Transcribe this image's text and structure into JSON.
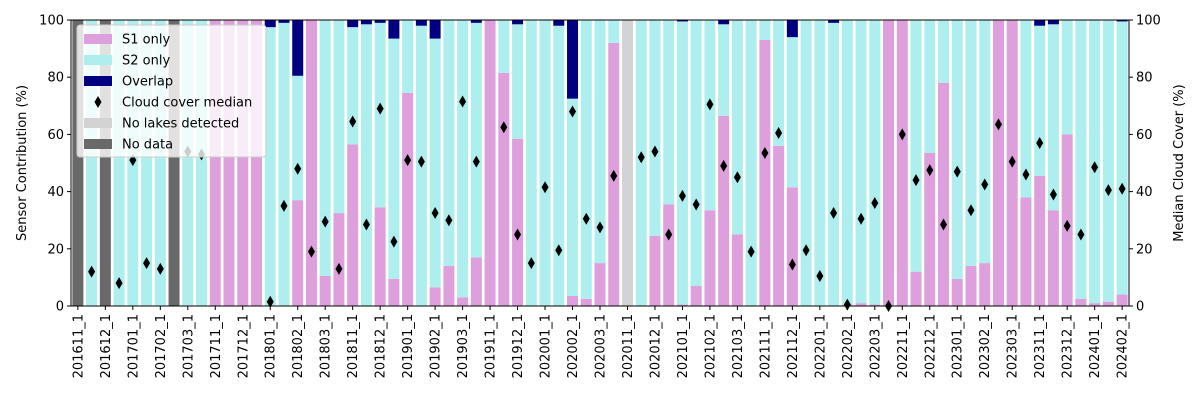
{
  "chart_data": {
    "type": "bar",
    "stacked": true,
    "ylabel_left": "Sensor Contribution (%)",
    "ylabel_right": "Median Cloud Cover (%)",
    "ylim": [
      0,
      100
    ],
    "y2lim": [
      0,
      100
    ],
    "yticks": [
      0,
      20,
      40,
      60,
      80,
      100
    ],
    "grid": false,
    "legend_position": "top-left",
    "colors": {
      "s1": "#dda0dd",
      "s2": "#afeeee",
      "overlap": "#000080",
      "no_lakes": "#d3d3d3",
      "no_data": "#696969",
      "median": "#000000"
    },
    "legend": [
      {
        "key": "s1",
        "label": "S1 only",
        "kind": "patch"
      },
      {
        "key": "s2",
        "label": "S2 only",
        "kind": "patch"
      },
      {
        "key": "overlap",
        "label": "Overlap",
        "kind": "patch"
      },
      {
        "key": "median",
        "label": "Cloud cover median",
        "kind": "marker"
      },
      {
        "key": "no_lakes",
        "label": "No lakes detected",
        "kind": "patch"
      },
      {
        "key": "no_data",
        "label": "No data",
        "kind": "patch"
      }
    ],
    "x_tick_labels": [
      {
        "index": 0,
        "label": "201611_1"
      },
      {
        "index": 2,
        "label": "201612_1"
      },
      {
        "index": 4,
        "label": "201701_1"
      },
      {
        "index": 6,
        "label": "201702_1"
      },
      {
        "index": 8,
        "label": "201703_1"
      },
      {
        "index": 10,
        "label": "201711_1"
      },
      {
        "index": 12,
        "label": "201712_1"
      },
      {
        "index": 14,
        "label": "201801_1"
      },
      {
        "index": 16,
        "label": "201802_1"
      },
      {
        "index": 18,
        "label": "201803_1"
      },
      {
        "index": 20,
        "label": "201811_1"
      },
      {
        "index": 22,
        "label": "201812_1"
      },
      {
        "index": 24,
        "label": "201901_1"
      },
      {
        "index": 26,
        "label": "201902_1"
      },
      {
        "index": 28,
        "label": "201903_1"
      },
      {
        "index": 30,
        "label": "201911_1"
      },
      {
        "index": 32,
        "label": "201912_1"
      },
      {
        "index": 34,
        "label": "202001_1"
      },
      {
        "index": 36,
        "label": "202002_1"
      },
      {
        "index": 38,
        "label": "202003_1"
      },
      {
        "index": 40,
        "label": "202011_1"
      },
      {
        "index": 42,
        "label": "202012_1"
      },
      {
        "index": 44,
        "label": "202101_1"
      },
      {
        "index": 46,
        "label": "202102_1"
      },
      {
        "index": 48,
        "label": "202103_1"
      },
      {
        "index": 50,
        "label": "202111_1"
      },
      {
        "index": 52,
        "label": "202112_1"
      },
      {
        "index": 54,
        "label": "202201_1"
      },
      {
        "index": 56,
        "label": "202202_1"
      },
      {
        "index": 58,
        "label": "202203_1"
      },
      {
        "index": 60,
        "label": "202211_1"
      },
      {
        "index": 62,
        "label": "202212_1"
      },
      {
        "index": 64,
        "label": "202301_1"
      },
      {
        "index": 66,
        "label": "202302_1"
      },
      {
        "index": 68,
        "label": "202303_1"
      },
      {
        "index": 70,
        "label": "202311_1"
      },
      {
        "index": 72,
        "label": "202312_1"
      },
      {
        "index": 74,
        "label": "202401_1"
      },
      {
        "index": 76,
        "label": "202402_1"
      }
    ],
    "bars": [
      {
        "status": "nodata",
        "s1": 0,
        "s2": 0,
        "overlap": 0,
        "median": null
      },
      {
        "status": "data",
        "s1": 0,
        "s2": 100,
        "overlap": 0,
        "median": 12
      },
      {
        "status": "nodata",
        "s1": 0,
        "s2": 0,
        "overlap": 0,
        "median": null
      },
      {
        "status": "data",
        "s1": 0,
        "s2": 100,
        "overlap": 0,
        "median": 8
      },
      {
        "status": "data",
        "s1": 0,
        "s2": 100,
        "overlap": 0,
        "median": 51
      },
      {
        "status": "data",
        "s1": 0,
        "s2": 100,
        "overlap": 0,
        "median": 15
      },
      {
        "status": "data",
        "s1": 0,
        "s2": 100,
        "overlap": 0,
        "median": 13
      },
      {
        "status": "nodata",
        "s1": 0,
        "s2": 0,
        "overlap": 0,
        "median": null
      },
      {
        "status": "data",
        "s1": 0,
        "s2": 100,
        "overlap": 0,
        "median": 54
      },
      {
        "status": "data",
        "s1": 0,
        "s2": 100,
        "overlap": 0,
        "median": 53
      },
      {
        "status": "data",
        "s1": 100,
        "s2": 0,
        "overlap": 0,
        "median": null
      },
      {
        "status": "data",
        "s1": 100,
        "s2": 0,
        "overlap": 0,
        "median": null
      },
      {
        "status": "data",
        "s1": 100,
        "s2": 0,
        "overlap": 0,
        "median": null
      },
      {
        "status": "data",
        "s1": 100,
        "s2": 0,
        "overlap": 0,
        "median": null
      },
      {
        "status": "data",
        "s1": 0,
        "s2": 97.5,
        "overlap": 2.5,
        "median": 1.5
      },
      {
        "status": "data",
        "s1": 0,
        "s2": 99,
        "overlap": 1,
        "median": 35
      },
      {
        "status": "data",
        "s1": 37,
        "s2": 43.5,
        "overlap": 19.5,
        "median": 48
      },
      {
        "status": "data",
        "s1": 100,
        "s2": 0,
        "overlap": 0,
        "median": 19
      },
      {
        "status": "data",
        "s1": 10.5,
        "s2": 89.5,
        "overlap": 0,
        "median": 29.5
      },
      {
        "status": "data",
        "s1": 32.5,
        "s2": 67.5,
        "overlap": 0,
        "median": 13
      },
      {
        "status": "data",
        "s1": 56.5,
        "s2": 41,
        "overlap": 2.5,
        "median": 64.5
      },
      {
        "status": "data",
        "s1": 0,
        "s2": 98.5,
        "overlap": 1.5,
        "median": 28.5
      },
      {
        "status": "data",
        "s1": 34.5,
        "s2": 64.5,
        "overlap": 1,
        "median": 69
      },
      {
        "status": "data",
        "s1": 9.5,
        "s2": 84,
        "overlap": 6.5,
        "median": 22.5
      },
      {
        "status": "data",
        "s1": 74.5,
        "s2": 25.5,
        "overlap": 0,
        "median": 51
      },
      {
        "status": "data",
        "s1": 0,
        "s2": 98,
        "overlap": 2,
        "median": 50.5
      },
      {
        "status": "data",
        "s1": 6.5,
        "s2": 87,
        "overlap": 6.5,
        "median": 32.5
      },
      {
        "status": "data",
        "s1": 14,
        "s2": 86,
        "overlap": 0,
        "median": 30
      },
      {
        "status": "data",
        "s1": 3,
        "s2": 97,
        "overlap": 0,
        "median": 71.5
      },
      {
        "status": "data",
        "s1": 17,
        "s2": 82,
        "overlap": 1,
        "median": 50.5
      },
      {
        "status": "data",
        "s1": 100,
        "s2": 0,
        "overlap": 0,
        "median": null
      },
      {
        "status": "data",
        "s1": 81.5,
        "s2": 18.5,
        "overlap": 0,
        "median": 62.5
      },
      {
        "status": "data",
        "s1": 58.5,
        "s2": 40,
        "overlap": 1.5,
        "median": 25
      },
      {
        "status": "data",
        "s1": 0,
        "s2": 100,
        "overlap": 0,
        "median": 15
      },
      {
        "status": "data",
        "s1": 0,
        "s2": 100,
        "overlap": 0,
        "median": 41.5
      },
      {
        "status": "data",
        "s1": 0,
        "s2": 98,
        "overlap": 2,
        "median": 19.5
      },
      {
        "status": "data",
        "s1": 3.5,
        "s2": 69,
        "overlap": 27.5,
        "median": 68
      },
      {
        "status": "data",
        "s1": 2.5,
        "s2": 97.5,
        "overlap": 0,
        "median": 30.5
      },
      {
        "status": "data",
        "s1": 15,
        "s2": 85,
        "overlap": 0,
        "median": 27.5
      },
      {
        "status": "data",
        "s1": 92,
        "s2": 8,
        "overlap": 0,
        "median": 45.5
      },
      {
        "status": "nolakes",
        "s1": 0,
        "s2": 0,
        "overlap": 0,
        "median": null
      },
      {
        "status": "data",
        "s1": 0,
        "s2": 100,
        "overlap": 0,
        "median": 52
      },
      {
        "status": "data",
        "s1": 24.5,
        "s2": 75.5,
        "overlap": 0,
        "median": 54
      },
      {
        "status": "data",
        "s1": 35.5,
        "s2": 64.5,
        "overlap": 0,
        "median": 25
      },
      {
        "status": "data",
        "s1": 0.5,
        "s2": 99,
        "overlap": 0.5,
        "median": 38.5
      },
      {
        "status": "data",
        "s1": 7,
        "s2": 93,
        "overlap": 0,
        "median": 35.5
      },
      {
        "status": "data",
        "s1": 33.5,
        "s2": 66.5,
        "overlap": 0,
        "median": 70.5
      },
      {
        "status": "data",
        "s1": 66.5,
        "s2": 32,
        "overlap": 1.5,
        "median": 49
      },
      {
        "status": "data",
        "s1": 25,
        "s2": 75,
        "overlap": 0,
        "median": 45
      },
      {
        "status": "data",
        "s1": 0,
        "s2": 100,
        "overlap": 0,
        "median": 19
      },
      {
        "status": "data",
        "s1": 93,
        "s2": 7,
        "overlap": 0,
        "median": 53.5
      },
      {
        "status": "data",
        "s1": 56,
        "s2": 44,
        "overlap": 0,
        "median": 60.5
      },
      {
        "status": "data",
        "s1": 41.5,
        "s2": 52.5,
        "overlap": 6,
        "median": 14.5
      },
      {
        "status": "data",
        "s1": 0,
        "s2": 100,
        "overlap": 0,
        "median": 19.5
      },
      {
        "status": "data",
        "s1": 0,
        "s2": 100,
        "overlap": 0,
        "median": 10.5
      },
      {
        "status": "data",
        "s1": 0,
        "s2": 99,
        "overlap": 1,
        "median": 32.5
      },
      {
        "status": "data",
        "s1": 0.5,
        "s2": 99.5,
        "overlap": 0,
        "median": 0.5
      },
      {
        "status": "data",
        "s1": 1,
        "s2": 99,
        "overlap": 0,
        "median": 30.5
      },
      {
        "status": "data",
        "s1": 0.5,
        "s2": 99.5,
        "overlap": 0,
        "median": 36
      },
      {
        "status": "data",
        "s1": 100,
        "s2": 0,
        "overlap": 0,
        "median": 0
      },
      {
        "status": "data",
        "s1": 100,
        "s2": 0,
        "overlap": 0,
        "median": 60
      },
      {
        "status": "data",
        "s1": 12,
        "s2": 88,
        "overlap": 0,
        "median": 44
      },
      {
        "status": "data",
        "s1": 53.5,
        "s2": 46.5,
        "overlap": 0,
        "median": 47.5
      },
      {
        "status": "data",
        "s1": 78,
        "s2": 22,
        "overlap": 0,
        "median": 28.5
      },
      {
        "status": "data",
        "s1": 9.5,
        "s2": 90.5,
        "overlap": 0,
        "median": 47
      },
      {
        "status": "data",
        "s1": 14,
        "s2": 86,
        "overlap": 0,
        "median": 33.5
      },
      {
        "status": "data",
        "s1": 15,
        "s2": 85,
        "overlap": 0,
        "median": 42.5
      },
      {
        "status": "data",
        "s1": 100,
        "s2": 0,
        "overlap": 0,
        "median": 63.5
      },
      {
        "status": "data",
        "s1": 100,
        "s2": 0,
        "overlap": 0,
        "median": 50.5
      },
      {
        "status": "data",
        "s1": 38,
        "s2": 62,
        "overlap": 0,
        "median": 46
      },
      {
        "status": "data",
        "s1": 45.5,
        "s2": 52.5,
        "overlap": 2,
        "median": 57
      },
      {
        "status": "data",
        "s1": 33.5,
        "s2": 65,
        "overlap": 1.5,
        "median": 39
      },
      {
        "status": "data",
        "s1": 60,
        "s2": 40,
        "overlap": 0,
        "median": 28
      },
      {
        "status": "data",
        "s1": 2.5,
        "s2": 97.5,
        "overlap": 0,
        "median": 25
      },
      {
        "status": "data",
        "s1": 1,
        "s2": 99,
        "overlap": 0,
        "median": 48.5
      },
      {
        "status": "data",
        "s1": 1.5,
        "s2": 98.5,
        "overlap": 0,
        "median": 40.5
      },
      {
        "status": "data",
        "s1": 4,
        "s2": 95.5,
        "overlap": 0.5,
        "median": 41
      }
    ]
  }
}
